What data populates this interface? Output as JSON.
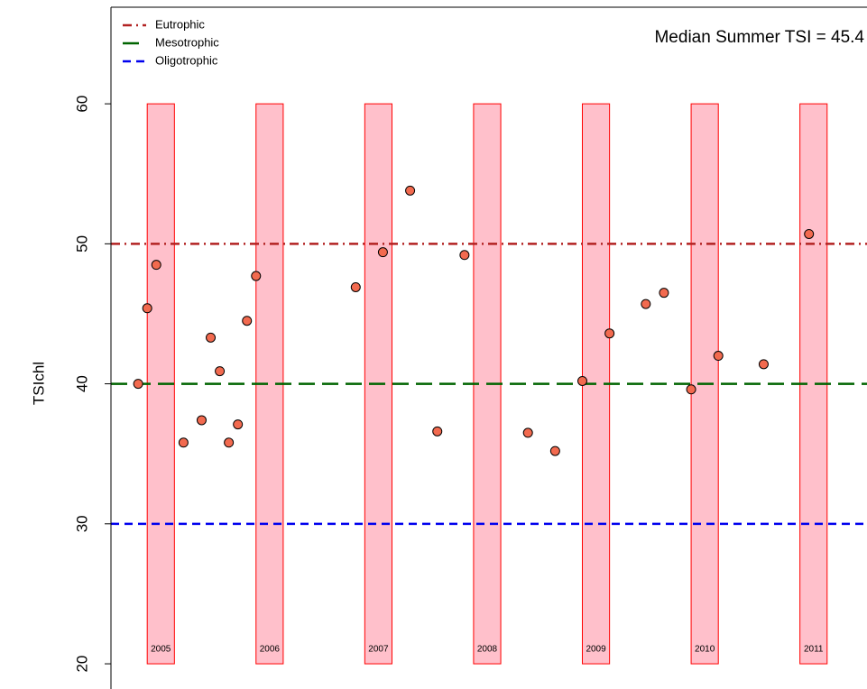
{
  "chart_data": {
    "type": "scatter",
    "y_label": "TSIchl",
    "annotation": "Median Summer TSI = 45.4",
    "xlim": [
      0,
      83.4
    ],
    "ylim": [
      18.2,
      66.9
    ],
    "yticks": [
      20,
      30,
      40,
      50,
      60
    ],
    "legend": "top-left",
    "series": [
      {
        "color": "#f26a4f",
        "x": [
          3,
          4,
          5,
          8,
          10,
          11,
          12,
          13,
          14,
          15,
          16,
          27,
          30,
          33,
          36,
          39,
          46,
          49,
          52,
          55,
          59,
          61,
          64,
          67,
          72,
          77
        ],
        "values": [
          40.0,
          45.4,
          48.5,
          35.8,
          37.4,
          43.3,
          40.9,
          35.8,
          37.1,
          44.5,
          47.7,
          46.9,
          49.4,
          53.8,
          36.6,
          49.2,
          36.5,
          35.2,
          40.2,
          43.6,
          45.7,
          46.5,
          39.6,
          42.0,
          41.4,
          50.7
        ]
      }
    ],
    "hlines": [
      {
        "name": "Eutrophic",
        "value": 50,
        "color": "#b22222",
        "dash": "10 5 2 5"
      },
      {
        "name": "Mesotrophic",
        "value": 40,
        "color": "#006400",
        "dash": "18 8"
      },
      {
        "name": "Oligotrophic",
        "value": 30,
        "color": "#0000ee",
        "dash": "9 6"
      }
    ],
    "bands": [
      {
        "label": "2005",
        "x": [
          4,
          7
        ],
        "y": [
          20,
          60
        ]
      },
      {
        "label": "2006",
        "x": [
          16,
          19
        ],
        "y": [
          20,
          60
        ]
      },
      {
        "label": "2007",
        "x": [
          28,
          31
        ],
        "y": [
          20,
          60
        ]
      },
      {
        "label": "2008",
        "x": [
          40,
          43
        ],
        "y": [
          20,
          60
        ]
      },
      {
        "label": "2009",
        "x": [
          52,
          55
        ],
        "y": [
          20,
          60
        ]
      },
      {
        "label": "2010",
        "x": [
          64,
          67
        ],
        "y": [
          20,
          60
        ]
      },
      {
        "label": "2011",
        "x": [
          76,
          79
        ],
        "y": [
          20,
          60
        ]
      }
    ]
  }
}
